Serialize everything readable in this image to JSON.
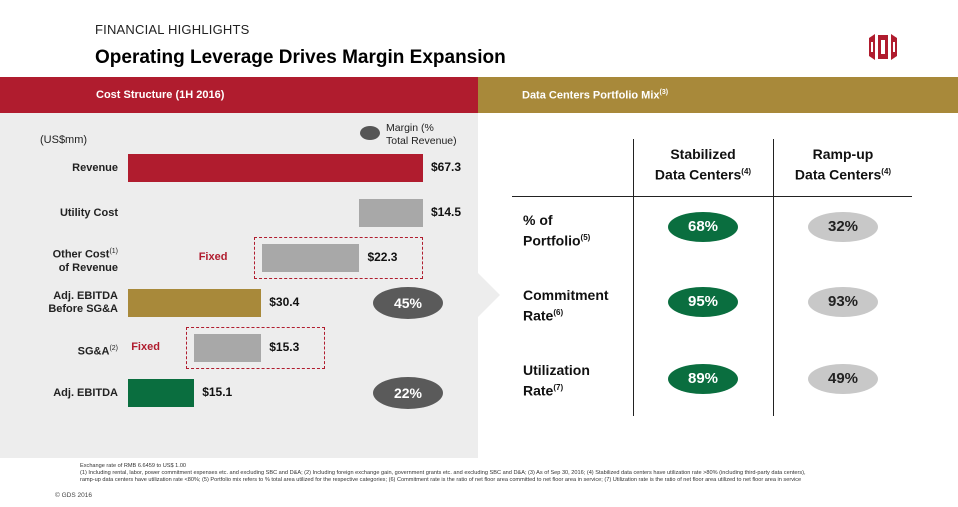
{
  "header": {
    "kicker": "FINANCIAL HIGHLIGHTS",
    "title": "Operating Leverage Drives Margin Expansion",
    "logo_icon": "gds-logo-icon",
    "logo_color": "#b01c2e"
  },
  "left_band": {
    "label": "Cost Structure (1H 2016)",
    "color": "#b01c2e"
  },
  "right_band": {
    "label": "Data Centers Portfolio Mix",
    "note": "(3)",
    "color": "#a8893a"
  },
  "chart_data": {
    "type": "bar",
    "title": "Cost Structure (1H 2016)",
    "unit_label": "(US$mm)",
    "legend": {
      "label": "Margin (% Total Revenue)",
      "line1": "Margin (%",
      "line2": "Total Revenue)",
      "placement": "top-right",
      "color": "#555555"
    },
    "categories": [
      {
        "label": "Revenue",
        "label_lines": [
          "Revenue"
        ],
        "note": ""
      },
      {
        "label": "Utility Cost",
        "label_lines": [
          "Utility Cost"
        ],
        "note": ""
      },
      {
        "label": "Other Cost of Revenue",
        "label_lines": [
          "Other Cost",
          "of Revenue"
        ],
        "note": "(1)"
      },
      {
        "label": "Adj. EBITDA Before SG&A",
        "label_lines": [
          "Adj. EBITDA",
          "Before SG&A"
        ],
        "note": ""
      },
      {
        "label": "SG&A",
        "label_lines": [
          "SG&A"
        ],
        "note": "(2)"
      },
      {
        "label": "Adj. EBITDA",
        "label_lines": [
          "Adj. EBITDA"
        ],
        "note": ""
      }
    ],
    "bars": [
      {
        "start": 0,
        "end": 67.3,
        "value_label": "$67.3",
        "color": "#b01c2e"
      },
      {
        "start": 52.8,
        "end": 67.3,
        "value_label": "$14.5",
        "color": "#a8a8a8"
      },
      {
        "start": 30.5,
        "end": 52.8,
        "value_label": "$22.3",
        "color": "#a8a8a8",
        "fixed": true
      },
      {
        "start": 0,
        "end": 30.4,
        "value_label": "$30.4",
        "color": "#a8893a"
      },
      {
        "start": 15.1,
        "end": 30.4,
        "value_label": "$15.3",
        "color": "#a8a8a8",
        "fixed": true
      },
      {
        "start": 0,
        "end": 15.1,
        "value_label": "$15.1",
        "color": "#0a6e3f"
      }
    ],
    "fixed_label": "Fixed",
    "margins": [
      {
        "category_index": 3,
        "label": "45%",
        "value": 45
      },
      {
        "category_index": 5,
        "label": "22%",
        "value": 22
      }
    ],
    "xlim": [
      0,
      67.3
    ]
  },
  "portfolio": {
    "columns": [
      {
        "line1": "Stabilized",
        "line2": "Data Centers",
        "note": "(4)"
      },
      {
        "line1": "Ramp-up",
        "line2": "Data Centers",
        "note": "(4)"
      }
    ],
    "rows": [
      {
        "line1": "% of",
        "line2": "Portfolio",
        "note": "(5)",
        "stabilized": "68%",
        "rampup": "32%"
      },
      {
        "line1": "Commitment",
        "line2": "Rate",
        "note": "(6)",
        "stabilized": "95%",
        "rampup": "93%"
      },
      {
        "line1": "Utilization",
        "line2": "Rate",
        "note": "(7)",
        "stabilized": "89%",
        "rampup": "49%"
      }
    ],
    "green": "#0a6e3f",
    "grey": "#c8c8c8"
  },
  "footnotes": {
    "line1": "Exchange rate of RMB 6.6459 to US$ 1.00",
    "line2": "(1) Including rental, labor, power commitment expenses etc. and excluding SBC and D&A; (2) Including foreign exchange gain, government grants etc. and excluding SBC and D&A; (3) As of Sep 30, 2016; (4) Stabilized data centers have utilization rate >80% (including third-party data centers),",
    "line3": "ramp-up data centers have utilization rate <80%; (5) Portfolio mix refers to % total area utilized for the respective categories; (6) Commitment rate is the ratio of net floor area committed to net floor area in service; (7) Utilization rate is the ratio of net floor area utilized to net floor area in service",
    "copyright": "© GDS 2016"
  }
}
